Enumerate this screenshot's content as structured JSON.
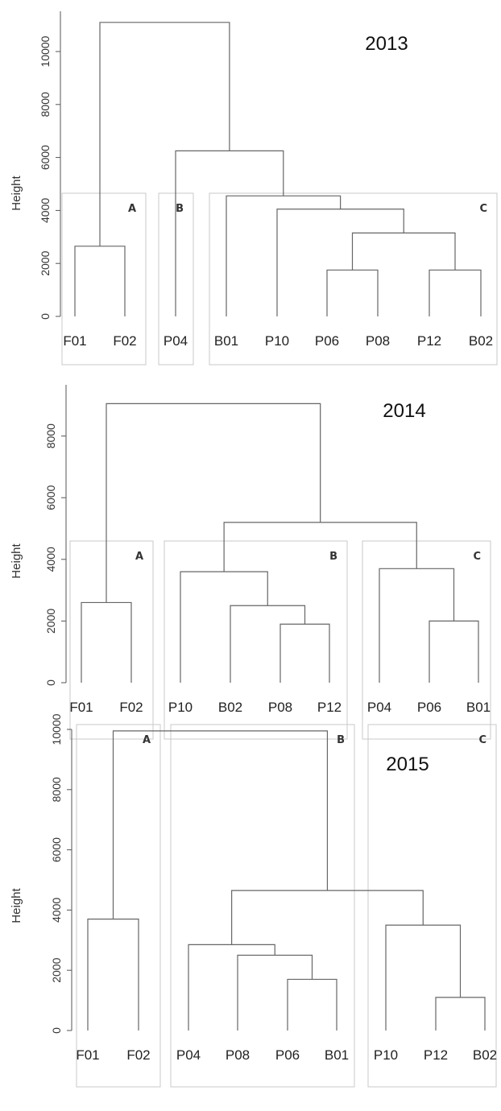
{
  "chart_data": [
    {
      "type": "dendrogram",
      "title": "2013",
      "ylabel": "Height",
      "ylim": [
        0,
        11000
      ],
      "yticks": [
        0,
        2000,
        4000,
        6000,
        8000,
        10000
      ],
      "leaves": [
        "F01",
        "F02",
        "P04",
        "B01",
        "P10",
        "P06",
        "P08",
        "P12",
        "B02"
      ],
      "merges": [
        {
          "id": "m1",
          "left": "P06",
          "right": "P08",
          "height": 1750
        },
        {
          "id": "m2",
          "left": "P12",
          "right": "B02",
          "height": 1750
        },
        {
          "id": "m3",
          "left": "F01",
          "right": "F02",
          "height": 2650
        },
        {
          "id": "m4",
          "left": "m1",
          "right": "m2",
          "height": 3150
        },
        {
          "id": "m5",
          "left": "P10",
          "right": "m4",
          "height": 4050
        },
        {
          "id": "m6",
          "left": "B01",
          "right": "m5",
          "height": 4550
        },
        {
          "id": "m7",
          "left": "P04",
          "right": "m6",
          "height": 6250
        },
        {
          "id": "m8",
          "left": "m3",
          "right": "m7",
          "height": 11100
        }
      ],
      "clusters": [
        {
          "label": "A",
          "from": 0,
          "to": 1
        },
        {
          "label": "B",
          "from": 2,
          "to": 2
        },
        {
          "label": "C",
          "from": 3,
          "to": 8
        }
      ]
    },
    {
      "type": "dendrogram",
      "title": "2014",
      "ylabel": "Height",
      "ylim": [
        0,
        9100
      ],
      "yticks": [
        0,
        2000,
        4000,
        6000,
        8000
      ],
      "leaves": [
        "F01",
        "F02",
        "P10",
        "B02",
        "P08",
        "P12",
        "P04",
        "P06",
        "B01"
      ],
      "merges": [
        {
          "id": "m1",
          "left": "P08",
          "right": "P12",
          "height": 1900
        },
        {
          "id": "m2",
          "left": "P06",
          "right": "B01",
          "height": 2000
        },
        {
          "id": "m3",
          "left": "B02",
          "right": "m1",
          "height": 2500
        },
        {
          "id": "m4",
          "left": "F01",
          "right": "F02",
          "height": 2600
        },
        {
          "id": "m5",
          "left": "P10",
          "right": "m3",
          "height": 3600
        },
        {
          "id": "m6",
          "left": "P04",
          "right": "m2",
          "height": 3700
        },
        {
          "id": "m7",
          "left": "m5",
          "right": "m6",
          "height": 5200
        },
        {
          "id": "m8",
          "left": "m4",
          "right": "m7",
          "height": 9050
        }
      ],
      "clusters": [
        {
          "label": "A",
          "from": 0,
          "to": 1
        },
        {
          "label": "B",
          "from": 2,
          "to": 5
        },
        {
          "label": "C",
          "from": 6,
          "to": 8
        }
      ]
    },
    {
      "type": "dendrogram",
      "title": "2015",
      "ylabel": "Height",
      "ylim": [
        0,
        10000
      ],
      "yticks": [
        0,
        2000,
        4000,
        6000,
        8000,
        10000
      ],
      "leaves": [
        "F01",
        "F02",
        "P04",
        "P08",
        "P06",
        "B01",
        "P10",
        "P12",
        "B02"
      ],
      "merges": [
        {
          "id": "m1",
          "left": "P12",
          "right": "B02",
          "height": 1100
        },
        {
          "id": "m2",
          "left": "P06",
          "right": "B01",
          "height": 1700
        },
        {
          "id": "m3",
          "left": "P08",
          "right": "m2",
          "height": 2500
        },
        {
          "id": "m4",
          "left": "P04",
          "right": "m3",
          "height": 2850
        },
        {
          "id": "m5",
          "left": "P10",
          "right": "m1",
          "height": 3500
        },
        {
          "id": "m6",
          "left": "F01",
          "right": "F02",
          "height": 3700
        },
        {
          "id": "m7",
          "left": "m4",
          "right": "m5",
          "height": 4650
        },
        {
          "id": "m8",
          "left": "m6",
          "right": "m7",
          "height": 9950
        }
      ],
      "clusters": [
        {
          "label": "A",
          "from": 0,
          "to": 1
        },
        {
          "label": "B",
          "from": 2,
          "to": 5
        },
        {
          "label": "C",
          "from": 6,
          "to": 8
        }
      ]
    }
  ]
}
